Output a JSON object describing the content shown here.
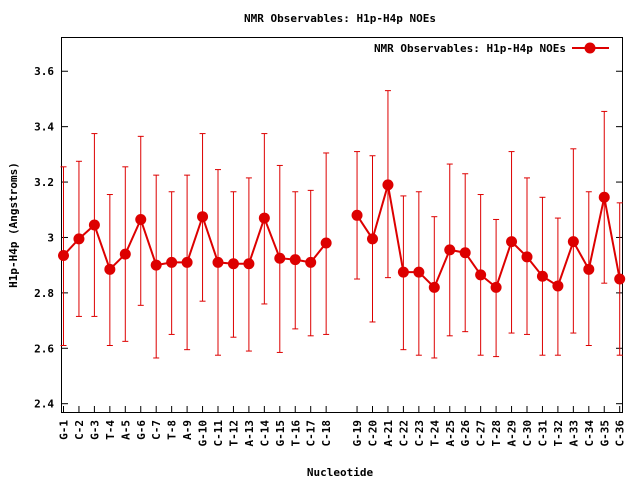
{
  "chart_data": {
    "type": "line",
    "title": "NMR Observables: H1p-H4p NOEs",
    "xlabel": "Nucleotide",
    "ylabel": "H1p-H4p (Angstroms)",
    "ylim": [
      2.37,
      3.72
    ],
    "yticks": [
      2.4,
      2.6,
      2.8,
      3,
      3.2,
      3.4,
      3.6
    ],
    "ytick_labels": [
      "2.4",
      "2.6",
      "2.8",
      "3",
      "3.2",
      "3.4",
      "3.6"
    ],
    "legend": {
      "label": "NMR Observables: H1p-H4p NOEs",
      "position": "top-right"
    },
    "color": "#dd0000",
    "series": [
      {
        "name": "NMR Observables: H1p-H4p NOEs",
        "segments": [
          {
            "categories": [
              "G-1",
              "C-2",
              "G-3",
              "T-4",
              "A-5",
              "G-6",
              "C-7",
              "T-8",
              "A-9",
              "G-10",
              "C-11",
              "T-12",
              "A-13",
              "C-14",
              "G-15",
              "T-16",
              "C-17",
              "C-18"
            ],
            "values": [
              2.935,
              2.995,
              3.045,
              2.885,
              2.94,
              3.065,
              2.9,
              2.91,
              2.91,
              3.075,
              2.91,
              2.905,
              2.905,
              3.07,
              2.925,
              2.92,
              2.91,
              2.98
            ],
            "lower": [
              2.61,
              2.715,
              2.715,
              2.61,
              2.625,
              2.755,
              2.565,
              2.65,
              2.595,
              2.77,
              2.575,
              2.64,
              2.59,
              2.76,
              2.585,
              2.67,
              2.645,
              2.65
            ],
            "upper": [
              3.255,
              3.275,
              3.375,
              3.155,
              3.255,
              3.365,
              3.225,
              3.165,
              3.225,
              3.375,
              3.245,
              3.165,
              3.215,
              3.375,
              3.26,
              3.165,
              3.17,
              3.305
            ]
          },
          {
            "categories": [
              "G-19",
              "C-20",
              "A-21",
              "C-22",
              "C-23",
              "T-24",
              "A-25",
              "G-26",
              "C-27",
              "T-28",
              "A-29",
              "C-30",
              "C-31",
              "T-32",
              "A-33",
              "C-34",
              "G-35",
              "C-36"
            ],
            "values": [
              3.08,
              2.995,
              3.19,
              2.875,
              2.875,
              2.82,
              2.955,
              2.945,
              2.865,
              2.82,
              2.985,
              2.93,
              2.86,
              2.825,
              2.985,
              2.885,
              3.145,
              2.85
            ],
            "lower": [
              2.85,
              2.695,
              2.855,
              2.595,
              2.575,
              2.565,
              2.645,
              2.66,
              2.575,
              2.57,
              2.655,
              2.65,
              2.575,
              2.575,
              2.655,
              2.61,
              2.835,
              2.575
            ],
            "upper": [
              3.31,
              3.295,
              3.53,
              3.15,
              3.165,
              3.075,
              3.265,
              3.23,
              3.155,
              3.065,
              3.31,
              3.215,
              3.145,
              3.07,
              3.32,
              3.165,
              3.455,
              3.125
            ]
          }
        ]
      }
    ]
  }
}
